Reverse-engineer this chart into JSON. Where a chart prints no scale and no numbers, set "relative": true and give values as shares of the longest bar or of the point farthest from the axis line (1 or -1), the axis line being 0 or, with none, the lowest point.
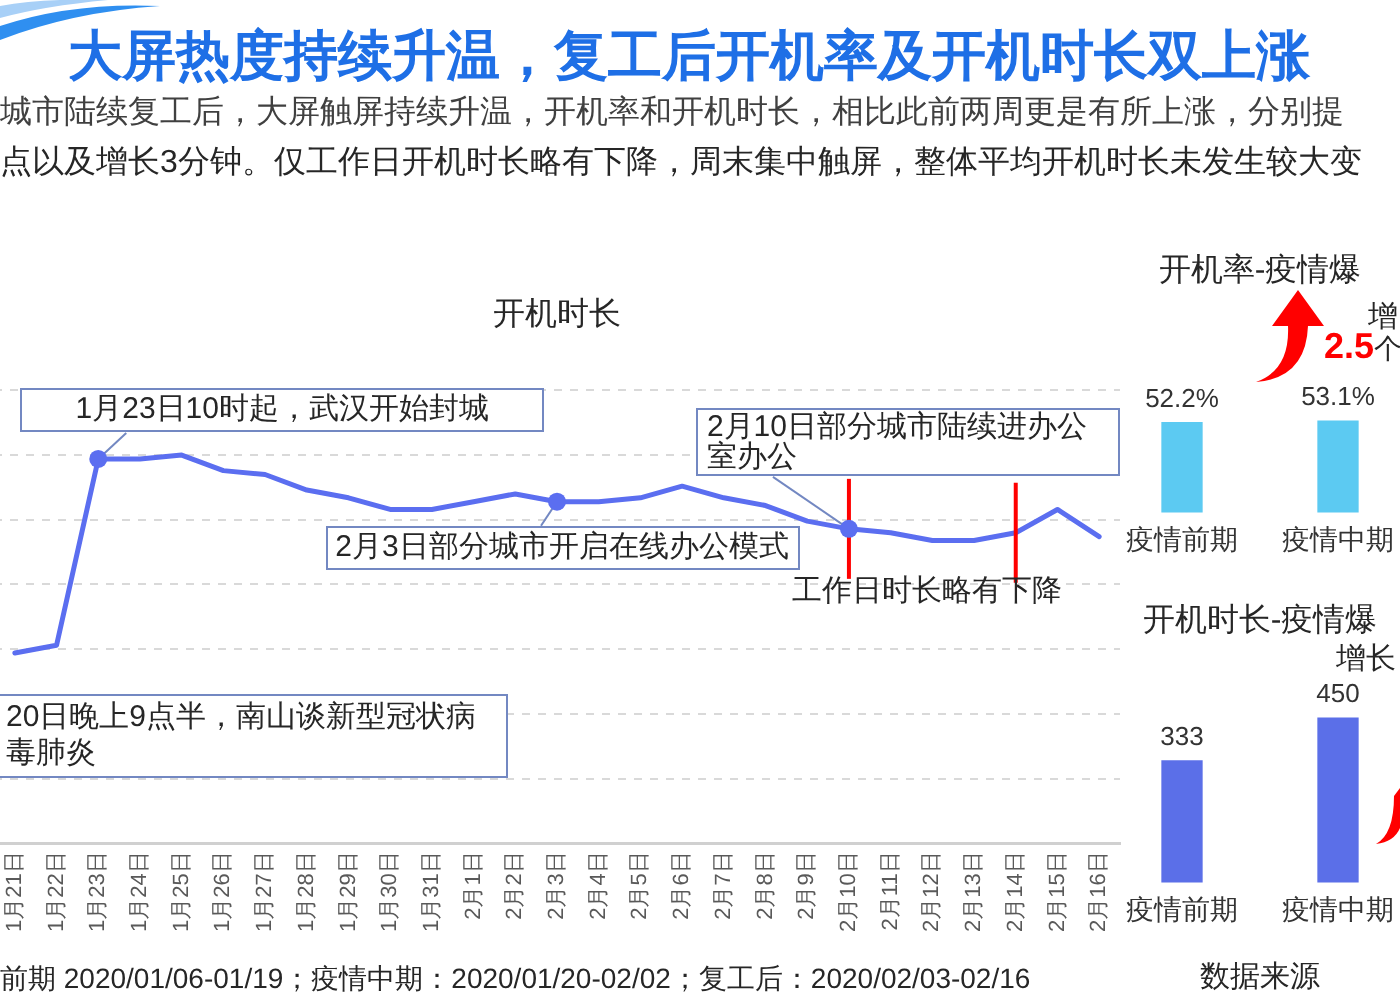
{
  "chart_data": [
    {
      "type": "other",
      "title": "大屏热度持续升温，复工后开机率及开机时长双上涨",
      "subtitle": "城市陆续复工后，大屏触屏持续升温，开机率和开机时长，相比此前两周更是有所上涨，分别提",
      "annotations": [
        "点以及增长3分钟。仅工作日开机时长略有下降，周末集中触屏，整体平均开机时长未发生较大变",
        "前期 2020/01/06-01/19；疫情中期：2020/01/20-02/02；复工后：2020/02/03-02/16",
        "数据来源"
      ]
    },
    {
      "type": "line",
      "title": "开机时长",
      "categories": [
        "1月21日",
        "1月22日",
        "1月23日",
        "1月24日",
        "1月25日",
        "1月26日",
        "1月27日",
        "1月28日",
        "1月29日",
        "1月30日",
        "1月31日",
        "2月1日",
        "2月2日",
        "2月3日",
        "2月4日",
        "2月5日",
        "2月6日",
        "2月7日",
        "2月8日",
        "2月9日",
        "2月10日",
        "2月11日",
        "2月12日",
        "2月13日",
        "2月14日",
        "2月15日",
        "2月16日"
      ],
      "values": [
        0.49,
        0.51,
        0.99,
        0.99,
        1,
        0.96,
        0.95,
        0.91,
        0.89,
        0.86,
        0.86,
        0.88,
        0.9,
        0.88,
        0.88,
        0.89,
        0.92,
        0.89,
        0.87,
        0.83,
        0.81,
        0.8,
        0.78,
        0.78,
        0.8,
        0.86,
        0.79
      ],
      "color": "#5b6ef0",
      "relative": true,
      "grid": "y",
      "marker": "none",
      "ref_lines": [
        {
          "axis": "x",
          "value": "2月10日",
          "color": "#ff0000"
        },
        {
          "axis": "x",
          "value": "2月14日",
          "color": "#ff0000"
        }
      ],
      "annotations": [
        {
          "text": "1月23日10时起，武汉开始封城",
          "x": "1月23日",
          "y": 0.99
        },
        {
          "text": "2月3日部分城市开启在线办公模式",
          "x": "2月3日",
          "y": 0.88
        },
        {
          "text": "2月10日部分城市陆续进办公室办公",
          "x": "2月10日",
          "y": 0.81
        },
        "工作日时长略有下降",
        "20日晚上9点半，南山谈新型冠状病毒肺炎"
      ]
    },
    {
      "type": "bar",
      "title": "开机率-疫情爆",
      "categories": [
        "疫情前期",
        "疫情中期"
      ],
      "values": [
        52.2,
        53.1
      ],
      "value_labels": [
        "52.2%",
        "53.1%"
      ],
      "color": "#5ccaf2",
      "annotations": [
        "增",
        "2.5个"
      ]
    },
    {
      "type": "bar",
      "title": "开机时长-疫情爆",
      "categories": [
        "疫情前期",
        "疫情中期"
      ],
      "values": [
        333,
        450
      ],
      "data_labels": true,
      "color": "#5b6fe8",
      "annotations": [
        "增长"
      ]
    }
  ]
}
